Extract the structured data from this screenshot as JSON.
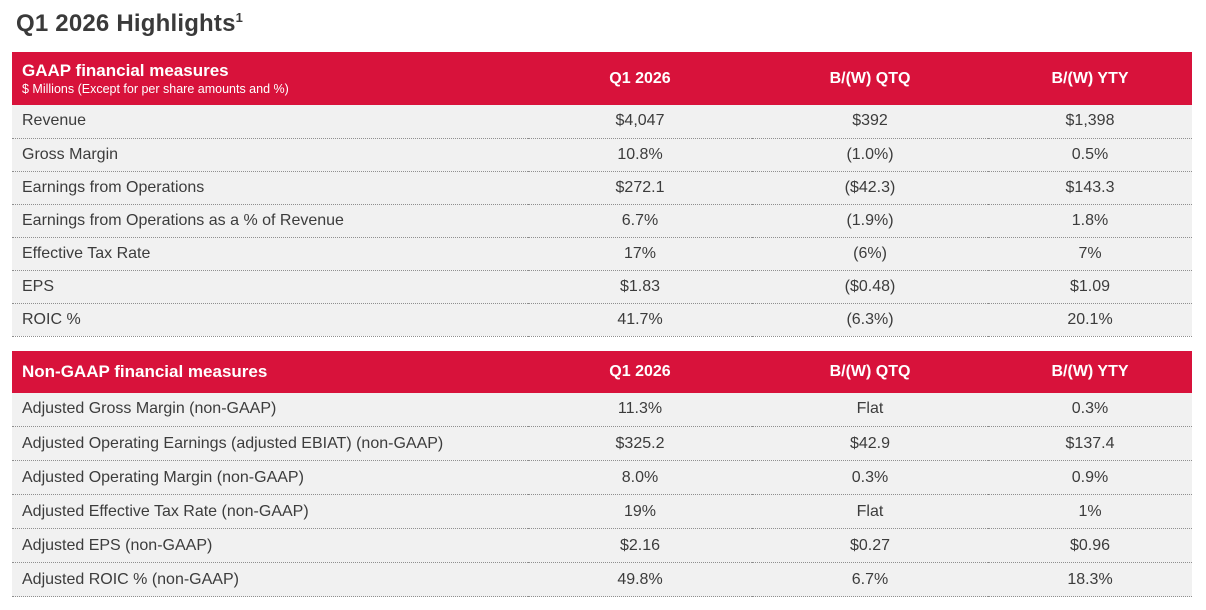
{
  "page": {
    "title": "Q1 2026 Highlights",
    "title_footnote": "1"
  },
  "colors": {
    "brand_red": "#D8123B",
    "row_background": "#F1F1F1",
    "text_dark": "#3C3C3C",
    "header_text": "#FFFFFF"
  },
  "gaap_table": {
    "title": "GAAP financial measures",
    "subtitle": "$ Millions (Except for per share amounts and %)",
    "columns": [
      "Q1 2026",
      "B/(W) QTQ",
      "B/(W) YTY"
    ],
    "rows": [
      {
        "label": "Revenue",
        "q1": "$4,047",
        "qtq": "$392",
        "yty": "$1,398"
      },
      {
        "label": "Gross Margin",
        "q1": "10.8%",
        "qtq": "(1.0%)",
        "yty": "0.5%"
      },
      {
        "label": "Earnings from Operations",
        "q1": "$272.1",
        "qtq": "($42.3)",
        "yty": "$143.3"
      },
      {
        "label": "Earnings from Operations as a % of Revenue",
        "q1": "6.7%",
        "qtq": "(1.9%)",
        "yty": "1.8%"
      },
      {
        "label": "Effective Tax Rate",
        "q1": "17%",
        "qtq": "(6%)",
        "yty": "7%"
      },
      {
        "label": "EPS",
        "q1": "$1.83",
        "qtq": "($0.48)",
        "yty": "$1.09"
      },
      {
        "label": "ROIC %",
        "q1": "41.7%",
        "qtq": "(6.3%)",
        "yty": "20.1%"
      }
    ]
  },
  "non_gaap_table": {
    "title": "Non-GAAP financial measures",
    "columns": [
      "Q1 2026",
      "B/(W) QTQ",
      "B/(W) YTY"
    ],
    "rows": [
      {
        "label": "Adjusted Gross Margin (non-GAAP)",
        "q1": "11.3%",
        "qtq": "Flat",
        "yty": "0.3%"
      },
      {
        "label": "Adjusted Operating Earnings (adjusted EBIAT) (non-GAAP)",
        "q1": "$325.2",
        "qtq": "$42.9",
        "yty": "$137.4"
      },
      {
        "label": "Adjusted Operating Margin (non-GAAP)",
        "q1": "8.0%",
        "qtq": "0.3%",
        "yty": "0.9%"
      },
      {
        "label": "Adjusted Effective Tax Rate (non-GAAP)",
        "q1": "19%",
        "qtq": "Flat",
        "yty": "1%"
      },
      {
        "label": "Adjusted EPS (non-GAAP)",
        "q1": "$2.16",
        "qtq": "$0.27",
        "yty": "$0.96"
      },
      {
        "label": "Adjusted ROIC % (non-GAAP)",
        "q1": "49.8%",
        "qtq": "6.7%",
        "yty": "18.3%"
      }
    ]
  }
}
